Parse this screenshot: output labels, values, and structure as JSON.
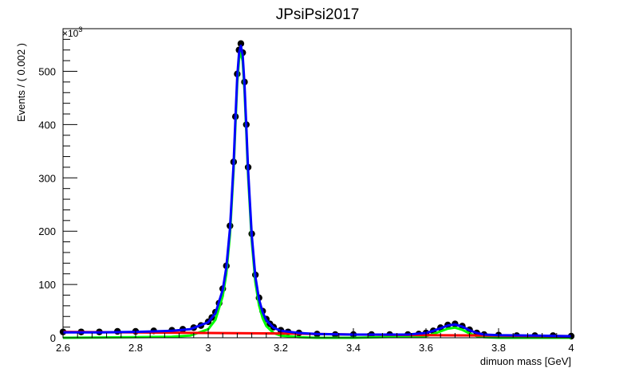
{
  "chart_data": {
    "type": "line",
    "title": "JPsiPsi2017",
    "xlabel": "dimuon mass [GeV]",
    "ylabel": "Events / ( 0.002 )",
    "y_multiplier": "×10",
    "y_multiplier_exp": "3",
    "xlim": [
      2.6,
      4.0
    ],
    "ylim": [
      0,
      580
    ],
    "x_ticks": [
      "2.6",
      "2.8",
      "3",
      "3.2",
      "3.4",
      "3.6",
      "3.8",
      "4"
    ],
    "x_tick_values": [
      2.6,
      2.8,
      3.0,
      3.2,
      3.4,
      3.6,
      3.8,
      4.0
    ],
    "y_ticks": [
      "0",
      "100",
      "200",
      "300",
      "400",
      "500"
    ],
    "y_tick_values": [
      0,
      100,
      200,
      300,
      400,
      500
    ],
    "grid": false,
    "legend": "none",
    "data_points": {
      "color": "#000000",
      "x": [
        2.6,
        2.65,
        2.7,
        2.75,
        2.8,
        2.85,
        2.9,
        2.93,
        2.96,
        2.98,
        3.0,
        3.01,
        3.02,
        3.03,
        3.04,
        3.05,
        3.06,
        3.07,
        3.075,
        3.08,
        3.085,
        3.09,
        3.095,
        3.1,
        3.105,
        3.11,
        3.12,
        3.13,
        3.14,
        3.15,
        3.16,
        3.17,
        3.18,
        3.2,
        3.22,
        3.25,
        3.3,
        3.35,
        3.4,
        3.45,
        3.5,
        3.55,
        3.58,
        3.6,
        3.62,
        3.64,
        3.66,
        3.68,
        3.7,
        3.72,
        3.74,
        3.76,
        3.8,
        3.85,
        3.9,
        3.95,
        4.0
      ],
      "y": [
        11,
        11,
        11,
        12,
        12,
        13,
        14,
        16,
        19,
        23,
        30,
        38,
        48,
        65,
        92,
        135,
        210,
        330,
        415,
        495,
        540,
        552,
        535,
        480,
        400,
        320,
        195,
        118,
        75,
        50,
        35,
        26,
        20,
        14,
        11,
        9,
        7,
        6,
        6,
        6,
        6,
        6,
        7,
        9,
        13,
        19,
        24,
        26,
        22,
        15,
        9,
        6,
        5,
        4,
        4,
        4,
        3
      ]
    },
    "series": [
      {
        "color": "#0000ff",
        "x": [
          2.6,
          2.7,
          2.8,
          2.85,
          2.9,
          2.95,
          3.0,
          3.02,
          3.04,
          3.05,
          3.06,
          3.07,
          3.075,
          3.08,
          3.085,
          3.09,
          3.095,
          3.1,
          3.105,
          3.11,
          3.12,
          3.13,
          3.14,
          3.15,
          3.16,
          3.18,
          3.2,
          3.25,
          3.3,
          3.4,
          3.5,
          3.55,
          3.6,
          3.62,
          3.64,
          3.66,
          3.68,
          3.7,
          3.72,
          3.74,
          3.76,
          3.8,
          3.9,
          4.0
        ],
        "y": [
          10,
          10,
          11,
          12,
          13,
          16,
          29,
          46,
          90,
          132,
          205,
          325,
          410,
          490,
          535,
          548,
          530,
          475,
          395,
          315,
          192,
          115,
          72,
          48,
          33,
          19,
          13,
          9,
          7,
          6,
          6,
          6,
          9,
          13,
          18,
          23,
          25,
          21,
          14,
          9,
          6,
          5,
          4,
          3
        ]
      },
      {
        "color": "#00ff00",
        "x": [
          2.6,
          2.8,
          2.9,
          2.95,
          3.0,
          3.02,
          3.04,
          3.05,
          3.06,
          3.07,
          3.075,
          3.08,
          3.085,
          3.09,
          3.095,
          3.1,
          3.105,
          3.11,
          3.12,
          3.13,
          3.14,
          3.15,
          3.16,
          3.18,
          3.2,
          3.25,
          3.3,
          3.4,
          3.6,
          3.62,
          3.64,
          3.66,
          3.68,
          3.7,
          3.72,
          3.74,
          3.76,
          3.8,
          4.0
        ],
        "y": [
          0,
          1,
          2,
          4,
          16,
          34,
          78,
          120,
          194,
          313,
          398,
          478,
          523,
          537,
          519,
          464,
          384,
          304,
          181,
          104,
          61,
          37,
          22,
          9,
          4,
          1,
          0,
          0,
          3,
          7,
          12,
          17,
          19,
          15,
          8,
          3,
          1,
          0,
          0
        ]
      },
      {
        "color": "#ff0000",
        "x": [
          2.6,
          2.8,
          3.0,
          3.2,
          3.4,
          3.6,
          3.8,
          4.0
        ],
        "y": [
          11,
          10,
          9,
          8,
          6,
          5,
          4,
          3
        ]
      }
    ]
  }
}
